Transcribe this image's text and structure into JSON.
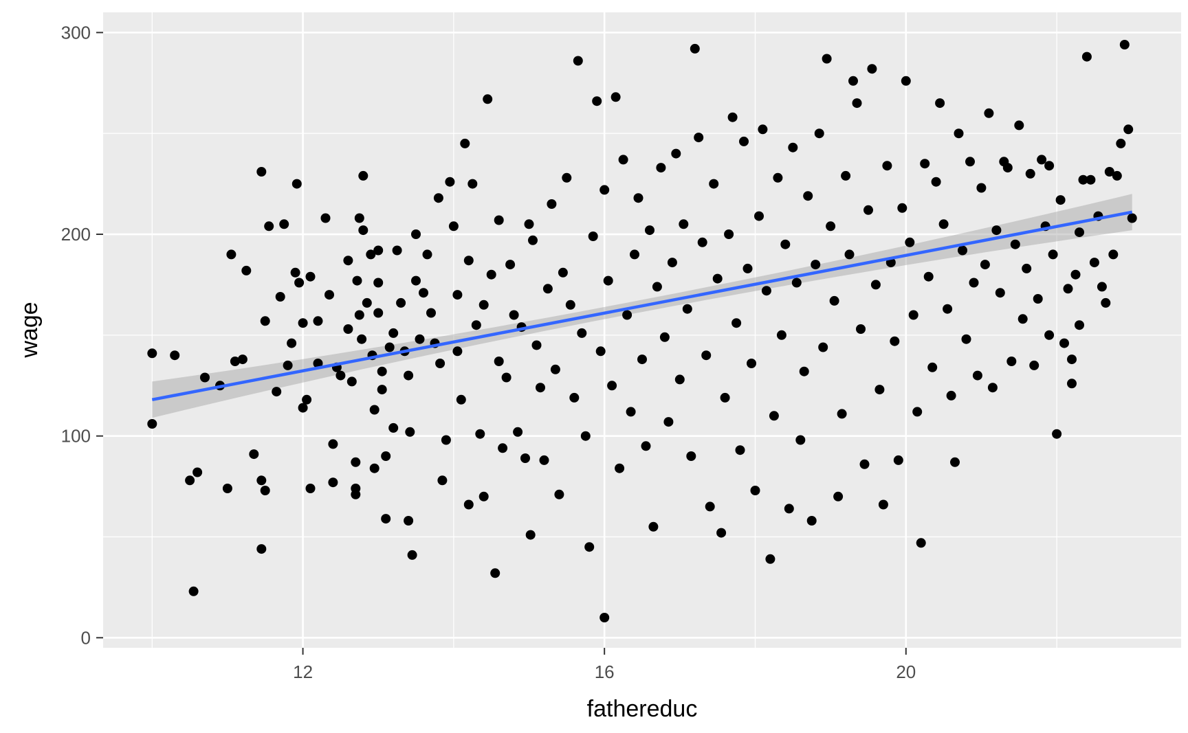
{
  "chart_data": {
    "type": "scatter",
    "title": "",
    "xlabel": "fathereduc",
    "ylabel": "wage",
    "xlim": [
      9.35,
      23.65
    ],
    "ylim": [
      -5,
      310
    ],
    "x_ticks": [
      12,
      16,
      20
    ],
    "x_tick_labels": [
      "12",
      "16",
      "20"
    ],
    "x_minor_ticks": [
      10,
      14,
      18,
      22
    ],
    "y_ticks": [
      0,
      100,
      200,
      300
    ],
    "y_tick_labels": [
      "0",
      "100",
      "200",
      "300"
    ],
    "y_minor_ticks": [
      50,
      150,
      250
    ],
    "grid": true,
    "legend": "none",
    "colors": {
      "panel": "#ebebeb",
      "grid": "#ffffff",
      "points": "#000000",
      "fit_line": "#3366ff",
      "confidence_band": "#999999"
    },
    "fit": {
      "method": "linear",
      "x_range": [
        10.0,
        23.0
      ],
      "y_at_start": 118,
      "y_at_end": 211,
      "ci_halfwidth_at_start": 9,
      "ci_halfwidth_at_center": 3,
      "ci_halfwidth_at_end": 9,
      "center_x": 16.3
    },
    "series": [
      {
        "values": [
          [
            10.0,
            141
          ],
          [
            10.0,
            106
          ],
          [
            10.3,
            140
          ],
          [
            10.5,
            78
          ],
          [
            10.55,
            23
          ],
          [
            10.6,
            82
          ],
          [
            10.7,
            129
          ],
          [
            10.9,
            125
          ],
          [
            11.0,
            74
          ],
          [
            11.05,
            190
          ],
          [
            11.1,
            137
          ],
          [
            11.2,
            138
          ],
          [
            11.25,
            182
          ],
          [
            11.35,
            91
          ],
          [
            11.45,
            231
          ],
          [
            11.45,
            78
          ],
          [
            11.45,
            44
          ],
          [
            11.5,
            157
          ],
          [
            11.5,
            73
          ],
          [
            11.55,
            204
          ],
          [
            11.65,
            122
          ],
          [
            11.7,
            169
          ],
          [
            11.75,
            205
          ],
          [
            11.8,
            135
          ],
          [
            11.85,
            146
          ],
          [
            11.9,
            181
          ],
          [
            11.92,
            225
          ],
          [
            11.95,
            176
          ],
          [
            12.0,
            156
          ],
          [
            12.0,
            114
          ],
          [
            12.05,
            118
          ],
          [
            12.1,
            179
          ],
          [
            12.1,
            74
          ],
          [
            12.2,
            136
          ],
          [
            12.2,
            157
          ],
          [
            12.3,
            208
          ],
          [
            12.35,
            170
          ],
          [
            12.4,
            77
          ],
          [
            12.4,
            96
          ],
          [
            12.45,
            134
          ],
          [
            12.5,
            130
          ],
          [
            12.6,
            187
          ],
          [
            12.6,
            153
          ],
          [
            12.65,
            127
          ],
          [
            12.7,
            87
          ],
          [
            12.7,
            74
          ],
          [
            12.7,
            71
          ],
          [
            12.72,
            177
          ],
          [
            12.75,
            208
          ],
          [
            12.75,
            160
          ],
          [
            12.78,
            148
          ],
          [
            12.8,
            229
          ],
          [
            12.8,
            202
          ],
          [
            12.85,
            166
          ],
          [
            12.9,
            190
          ],
          [
            12.92,
            140
          ],
          [
            12.95,
            113
          ],
          [
            12.95,
            84
          ],
          [
            13.0,
            192
          ],
          [
            13.0,
            176
          ],
          [
            13.0,
            161
          ],
          [
            13.05,
            123
          ],
          [
            13.05,
            132
          ],
          [
            13.1,
            59
          ],
          [
            13.1,
            90
          ],
          [
            13.15,
            144
          ],
          [
            13.2,
            104
          ],
          [
            13.2,
            151
          ],
          [
            13.25,
            192
          ],
          [
            13.3,
            166
          ],
          [
            13.35,
            142
          ],
          [
            13.4,
            130
          ],
          [
            13.4,
            58
          ],
          [
            13.42,
            102
          ],
          [
            13.45,
            41
          ],
          [
            13.5,
            177
          ],
          [
            13.5,
            200
          ],
          [
            13.55,
            148
          ],
          [
            13.6,
            171
          ],
          [
            13.65,
            190
          ],
          [
            13.7,
            161
          ],
          [
            13.75,
            146
          ],
          [
            13.8,
            218
          ],
          [
            13.82,
            136
          ],
          [
            13.85,
            78
          ],
          [
            13.9,
            98
          ],
          [
            13.95,
            226
          ],
          [
            14.0,
            204
          ],
          [
            14.05,
            170
          ],
          [
            14.05,
            142
          ],
          [
            14.1,
            118
          ],
          [
            14.15,
            245
          ],
          [
            14.2,
            187
          ],
          [
            14.2,
            66
          ],
          [
            14.25,
            225
          ],
          [
            14.3,
            155
          ],
          [
            14.35,
            101
          ],
          [
            14.4,
            165
          ],
          [
            14.4,
            70
          ],
          [
            14.45,
            267
          ],
          [
            14.5,
            180
          ],
          [
            14.55,
            32
          ],
          [
            14.6,
            207
          ],
          [
            14.6,
            137
          ],
          [
            14.65,
            94
          ],
          [
            14.7,
            129
          ],
          [
            14.75,
            185
          ],
          [
            14.8,
            160
          ],
          [
            14.85,
            102
          ],
          [
            14.9,
            154
          ],
          [
            14.95,
            89
          ],
          [
            15.0,
            205
          ],
          [
            15.02,
            51
          ],
          [
            15.05,
            197
          ],
          [
            15.1,
            145
          ],
          [
            15.15,
            124
          ],
          [
            15.2,
            88
          ],
          [
            15.25,
            173
          ],
          [
            15.3,
            215
          ],
          [
            15.35,
            133
          ],
          [
            15.4,
            71
          ],
          [
            15.45,
            181
          ],
          [
            15.5,
            228
          ],
          [
            15.55,
            165
          ],
          [
            15.6,
            119
          ],
          [
            15.65,
            286
          ],
          [
            15.7,
            151
          ],
          [
            15.75,
            100
          ],
          [
            15.8,
            45
          ],
          [
            15.85,
            199
          ],
          [
            15.9,
            266
          ],
          [
            15.95,
            142
          ],
          [
            16.0,
            222
          ],
          [
            16.0,
            10
          ],
          [
            16.05,
            177
          ],
          [
            16.1,
            125
          ],
          [
            16.15,
            268
          ],
          [
            16.2,
            84
          ],
          [
            16.25,
            237
          ],
          [
            16.3,
            160
          ],
          [
            16.35,
            112
          ],
          [
            16.4,
            190
          ],
          [
            16.45,
            218
          ],
          [
            16.5,
            138
          ],
          [
            16.55,
            95
          ],
          [
            16.6,
            202
          ],
          [
            16.65,
            55
          ],
          [
            16.7,
            174
          ],
          [
            16.75,
            233
          ],
          [
            16.8,
            149
          ],
          [
            16.85,
            107
          ],
          [
            16.9,
            186
          ],
          [
            16.95,
            240
          ],
          [
            17.0,
            128
          ],
          [
            17.05,
            205
          ],
          [
            17.1,
            163
          ],
          [
            17.15,
            90
          ],
          [
            17.2,
            292
          ],
          [
            17.25,
            248
          ],
          [
            17.3,
            196
          ],
          [
            17.35,
            140
          ],
          [
            17.4,
            65
          ],
          [
            17.45,
            225
          ],
          [
            17.5,
            178
          ],
          [
            17.55,
            52
          ],
          [
            17.6,
            119
          ],
          [
            17.65,
            200
          ],
          [
            17.7,
            258
          ],
          [
            17.75,
            156
          ],
          [
            17.8,
            93
          ],
          [
            17.85,
            246
          ],
          [
            17.9,
            183
          ],
          [
            17.95,
            136
          ],
          [
            18.0,
            73
          ],
          [
            18.05,
            209
          ],
          [
            18.1,
            252
          ],
          [
            18.15,
            172
          ],
          [
            18.2,
            39
          ],
          [
            18.25,
            110
          ],
          [
            18.3,
            228
          ],
          [
            18.35,
            150
          ],
          [
            18.4,
            195
          ],
          [
            18.45,
            64
          ],
          [
            18.5,
            243
          ],
          [
            18.55,
            176
          ],
          [
            18.6,
            98
          ],
          [
            18.65,
            132
          ],
          [
            18.7,
            219
          ],
          [
            18.75,
            58
          ],
          [
            18.8,
            185
          ],
          [
            18.85,
            250
          ],
          [
            18.9,
            144
          ],
          [
            18.95,
            287
          ],
          [
            19.0,
            204
          ],
          [
            19.05,
            167
          ],
          [
            19.1,
            70
          ],
          [
            19.15,
            111
          ],
          [
            19.2,
            229
          ],
          [
            19.25,
            190
          ],
          [
            19.3,
            276
          ],
          [
            19.35,
            265
          ],
          [
            19.4,
            153
          ],
          [
            19.45,
            86
          ],
          [
            19.5,
            212
          ],
          [
            19.55,
            282
          ],
          [
            19.6,
            175
          ],
          [
            19.65,
            123
          ],
          [
            19.7,
            66
          ],
          [
            19.75,
            234
          ],
          [
            19.8,
            186
          ],
          [
            19.85,
            147
          ],
          [
            19.9,
            88
          ],
          [
            19.95,
            213
          ],
          [
            20.0,
            276
          ],
          [
            20.05,
            196
          ],
          [
            20.1,
            160
          ],
          [
            20.15,
            112
          ],
          [
            20.2,
            47
          ],
          [
            20.25,
            235
          ],
          [
            20.3,
            179
          ],
          [
            20.35,
            134
          ],
          [
            20.4,
            226
          ],
          [
            20.45,
            265
          ],
          [
            20.5,
            205
          ],
          [
            20.55,
            163
          ],
          [
            20.6,
            120
          ],
          [
            20.65,
            87
          ],
          [
            20.7,
            250
          ],
          [
            20.75,
            192
          ],
          [
            20.8,
            148
          ],
          [
            20.85,
            236
          ],
          [
            20.9,
            176
          ],
          [
            20.95,
            130
          ],
          [
            21.0,
            223
          ],
          [
            21.05,
            185
          ],
          [
            21.1,
            260
          ],
          [
            21.15,
            124
          ],
          [
            21.2,
            202
          ],
          [
            21.25,
            171
          ],
          [
            21.3,
            236
          ],
          [
            21.35,
            233
          ],
          [
            21.4,
            137
          ],
          [
            21.45,
            195
          ],
          [
            21.5,
            254
          ],
          [
            21.55,
            158
          ],
          [
            21.6,
            183
          ],
          [
            21.65,
            230
          ],
          [
            21.7,
            135
          ],
          [
            21.75,
            168
          ],
          [
            21.8,
            237
          ],
          [
            21.85,
            204
          ],
          [
            21.9,
            150
          ],
          [
            21.95,
            190
          ],
          [
            22.0,
            101
          ],
          [
            22.05,
            217
          ],
          [
            22.1,
            146
          ],
          [
            22.15,
            173
          ],
          [
            22.2,
            126
          ],
          [
            22.25,
            180
          ],
          [
            22.3,
            155
          ],
          [
            22.35,
            227
          ],
          [
            22.4,
            288
          ],
          [
            22.45,
            227
          ],
          [
            22.5,
            186
          ],
          [
            22.55,
            209
          ],
          [
            22.6,
            174
          ],
          [
            22.65,
            166
          ],
          [
            22.7,
            231
          ],
          [
            22.75,
            190
          ],
          [
            22.8,
            229
          ],
          [
            22.85,
            245
          ],
          [
            22.9,
            294
          ],
          [
            22.95,
            252
          ],
          [
            23.0,
            208
          ],
          [
            22.3,
            201
          ],
          [
            21.9,
            234
          ],
          [
            22.2,
            138
          ]
        ]
      }
    ]
  }
}
